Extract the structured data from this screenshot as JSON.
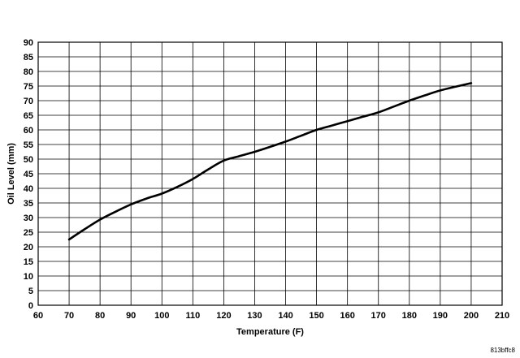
{
  "chart_data": {
    "type": "line",
    "xlabel": "Temperature (F)",
    "ylabel": "Oil Level (mm)",
    "xlim": [
      60,
      210
    ],
    "ylim": [
      0,
      90
    ],
    "x_ticks": [
      60,
      70,
      80,
      90,
      100,
      110,
      120,
      130,
      140,
      150,
      160,
      170,
      180,
      190,
      200,
      210
    ],
    "y_ticks": [
      0,
      5,
      10,
      15,
      20,
      25,
      30,
      35,
      40,
      45,
      50,
      55,
      60,
      65,
      70,
      75,
      80,
      85,
      90
    ],
    "grid": true,
    "series": [
      {
        "x": [
          70,
          75,
          80,
          85,
          90,
          95,
          100,
          105,
          110,
          115,
          120,
          125,
          130,
          135,
          140,
          145,
          150,
          155,
          160,
          165,
          170,
          175,
          180,
          185,
          190,
          195,
          200
        ],
        "values": [
          22.5,
          26,
          29.3,
          32,
          34.5,
          36.5,
          38.2,
          40.5,
          43.2,
          46.5,
          49.5,
          51,
          52.5,
          54.2,
          56,
          58,
          60,
          61.5,
          63,
          64.5,
          66,
          68,
          70,
          71.8,
          73.5,
          74.8,
          76
        ]
      }
    ],
    "reference_code": "813bffc8"
  }
}
